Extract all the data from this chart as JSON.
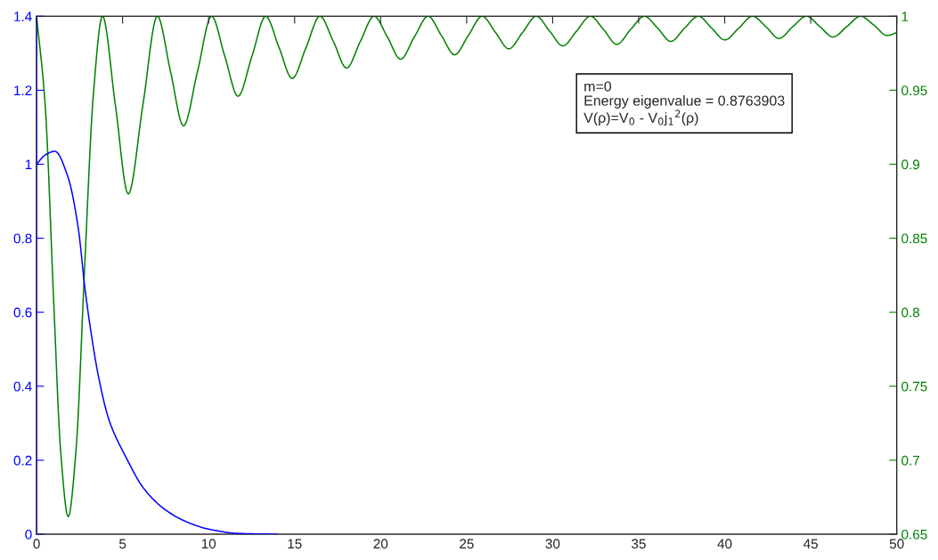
{
  "chart_data": {
    "type": "line",
    "annotations": [
      "m=0",
      "Energy eigenvalue = 0.8763903",
      "V(ρ)=V$_{0}$ - V$_{0}$j$_{1}$$^{2}$(ρ)"
    ],
    "series": [
      {
        "color": "#0000ff",
        "x": [
          0,
          0.5,
          1.06,
          1.82,
          2.42,
          2.82,
          3.21,
          3.62,
          4.21,
          5.21,
          6.21,
          7.4,
          8.6,
          9.99,
          11.79,
          13.98
        ],
        "values": [
          1.0,
          1.025,
          1.035,
          0.966,
          0.828,
          0.661,
          0.532,
          0.421,
          0.309,
          0.207,
          0.125,
          0.069,
          0.036,
          0.014,
          0.002,
          0
        ]
      },
      {
        "color": "#008000",
        "axis": "y2",
        "x": [
          0,
          0.5,
          1.0,
          1.4,
          1.84,
          2.3,
          2.8,
          3.3,
          3.83,
          4.58,
          5.33,
          6.18,
          7.02,
          7.78,
          8.54,
          9.36,
          10.17,
          10.94,
          11.71,
          12.52,
          13.32,
          14.09,
          14.86,
          15.67,
          16.47,
          17.25,
          18.02,
          18.82,
          19.62,
          20.39,
          21.16,
          21.96,
          22.76,
          23.53,
          24.3,
          25.1,
          25.9,
          26.68,
          27.45,
          28.25,
          29.05,
          29.82,
          30.59,
          31.39,
          32.19,
          32.96,
          33.73,
          34.53,
          35.33,
          36.1,
          36.87,
          37.67,
          38.47,
          39.24,
          40.01,
          40.82,
          41.62,
          42.39,
          43.16,
          43.96,
          44.76,
          45.53,
          46.3,
          47.1,
          47.9,
          48.67,
          49.44,
          50
        ],
        "values": [
          1,
          0.94,
          0.806,
          0.706,
          0.662,
          0.708,
          0.832,
          0.947,
          1,
          0.94,
          0.88,
          0.94,
          1,
          0.963,
          0.926,
          0.963,
          1,
          0.973,
          0.946,
          0.973,
          1,
          0.979,
          0.958,
          0.979,
          1,
          0.983,
          0.965,
          0.983,
          1,
          0.986,
          0.971,
          0.986,
          1,
          0.987,
          0.974,
          0.987,
          1,
          0.989,
          0.978,
          0.989,
          1,
          0.99,
          0.98,
          0.99,
          1,
          0.991,
          0.981,
          0.991,
          1,
          0.992,
          0.983,
          0.992,
          1,
          0.992,
          0.984,
          0.992,
          1,
          0.993,
          0.985,
          0.993,
          1,
          0.993,
          0.986,
          0.993,
          1,
          0.994,
          0.987,
          0.989
        ]
      }
    ],
    "xlim": [
      0,
      50
    ],
    "xticks": [
      0,
      5,
      10,
      15,
      20,
      25,
      30,
      35,
      40,
      45,
      50
    ],
    "ylim": [
      0,
      1.4
    ],
    "yticks": [
      0,
      0.2,
      0.4,
      0.6,
      0.8,
      1,
      1.2,
      1.4
    ],
    "y2lim": [
      0.65,
      1
    ],
    "y2ticks": [
      0.65,
      0.7,
      0.75,
      0.8,
      0.85,
      0.9,
      0.95,
      1
    ],
    "grid": false,
    "legend": false,
    "marker": "none",
    "line_style": "solid"
  }
}
